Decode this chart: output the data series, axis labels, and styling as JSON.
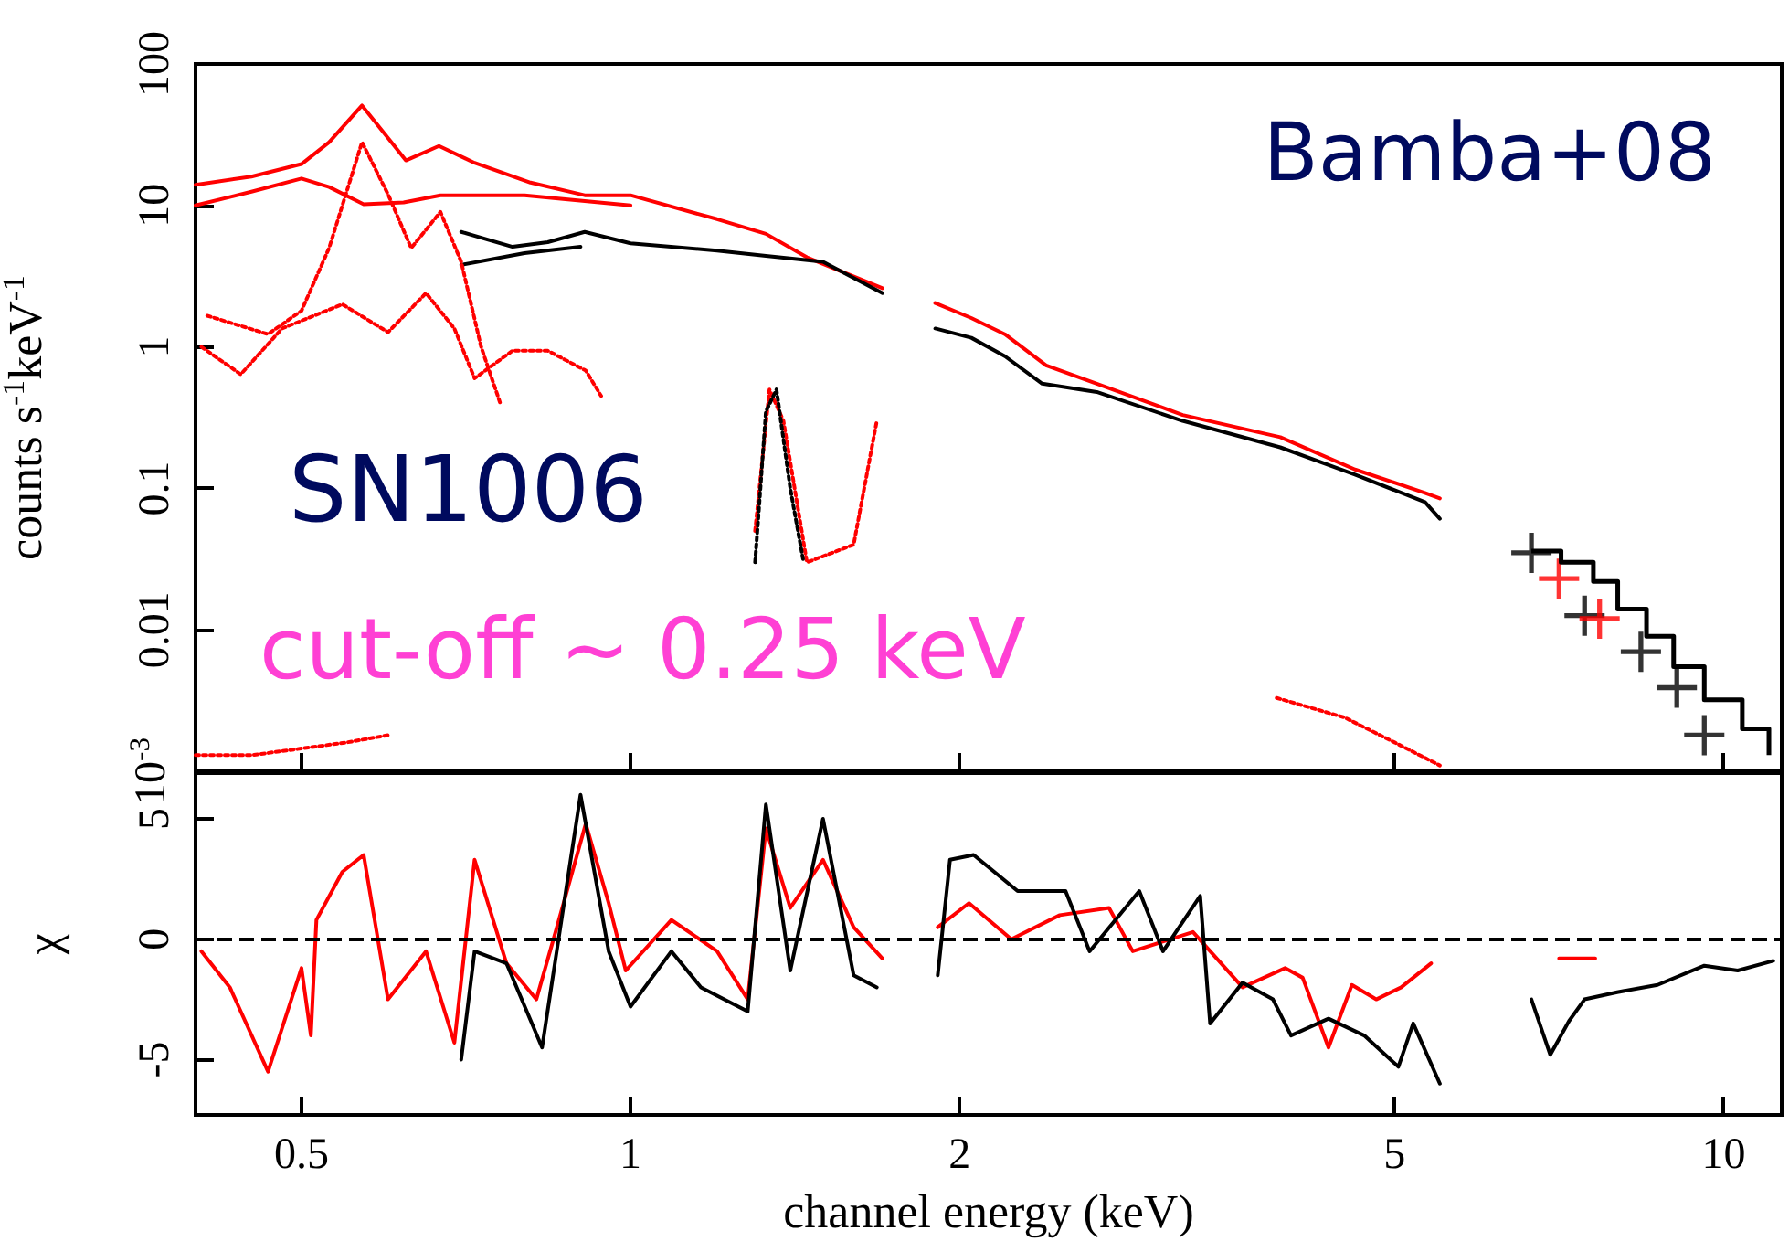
{
  "chart_data": [
    {
      "type": "line",
      "ylabel": "counts s$^{-1}$keV$^{-1}$",
      "annotations": [
        "Bamba+08",
        "SN1006",
        "cut-off ~ 0.25 keV"
      ],
      "log": "xy",
      "tick_labels": "y",
      "xlim": [
        0.4,
        11.3
      ],
      "xticks": [
        {
          "value": 0.5,
          "label": null
        },
        {
          "value": 1,
          "label": null
        },
        {
          "value": 2,
          "label": null
        },
        {
          "value": 5,
          "label": null
        },
        {
          "value": 10,
          "label": null
        }
      ],
      "ylim": [
        0.001,
        100
      ],
      "yticks": [
        {
          "value": 0.001,
          "label": "10$^{-3}$"
        },
        0.01,
        0.1,
        1,
        10,
        100
      ],
      "marker": "none",
      "series": [
        {
          "color": "#ff0000",
          "x": [
            0.4,
            0.45,
            0.5,
            0.53,
            0.568,
            0.6,
            0.623,
            0.668,
            0.72,
            0.81,
            0.908,
            1.0,
            1.2,
            1.33,
            1.45,
            1.7,
            1.8,
            1.9,
            2.05,
            2.2,
            2.4,
            2.67,
            3.2,
            3.93,
            4.6,
            5.33,
            5.5
          ],
          "values": [
            14,
            16,
            19.6,
            28,
            50.9,
            30,
            20.8,
            26.3,
            20,
            14.5,
            11.8,
            11.8,
            8,
            6.3,
            4.3,
            2.6,
            null,
            2.04,
            1.6,
            1.23,
            0.74,
            0.55,
            0.33,
            0.23,
            0.136,
            0.093,
            0.085
          ]
        },
        {
          "color": "#000000",
          "x": [
            0.7,
            0.78,
            0.84,
            0.908,
            1.0,
            1.2,
            1.33,
            1.5,
            1.7,
            1.8,
            1.9,
            2.05,
            2.2,
            2.38,
            2.67,
            3.2,
            3.93,
            4.6,
            5.33,
            5.5
          ],
          "values": [
            6.5,
            5.1,
            5.5,
            6.5,
            5.4,
            4.8,
            4.4,
            4.0,
            2.4,
            null,
            1.35,
            1.16,
            0.86,
            0.55,
            0.48,
            0.3,
            0.195,
            0.125,
            0.08,
            0.061
          ]
        },
        {
          "color": "#ff0000",
          "x": [
            0.4,
            0.45,
            0.5,
            0.53,
            0.57,
            0.62,
            0.67,
            0.8,
            1.0
          ],
          "values": [
            10,
            12.5,
            15.5,
            13.5,
            10.2,
            10.5,
            11.8,
            11.8,
            10
          ]
        },
        {
          "color": "#000000",
          "x": [
            0.7,
            0.8,
            0.9
          ],
          "values": [
            3.8,
            4.6,
            5.1
          ]
        },
        {
          "color": "#ff0000",
          "line_style": "dotted",
          "x": [
            0.41,
            0.466,
            0.5,
            0.53,
            0.568,
            0.6,
            0.63,
            0.67,
            0.7,
            0.73,
            0.76
          ],
          "values": [
            1.66,
            1.23,
            1.8,
            5,
            28,
            12,
            5,
            9,
            4,
            1,
            0.4
          ]
        },
        {
          "color": "#ff0000",
          "line_style": "dotted",
          "x": [
            0.405,
            0.44,
            0.48,
            0.545,
            0.6,
            0.65,
            0.69,
            0.72,
            0.78,
            0.84,
            0.91,
            0.94
          ],
          "values": [
            1,
            0.64,
            1.35,
            2,
            1.27,
            2.4,
            1.35,
            0.6,
            0.94,
            0.94,
            0.68,
            0.45
          ]
        },
        {
          "color": "#ff0000",
          "line_style": "dotted",
          "x": [
            1.3,
            1.34,
            1.38,
            1.45,
            1.6,
            1.68
          ],
          "values": [
            0.05,
            0.5,
            0.3,
            0.03,
            0.04,
            0.3
          ]
        },
        {
          "color": "#000000",
          "line_style": "dotted",
          "x": [
            1.3,
            1.33,
            1.36,
            1.4,
            1.44
          ],
          "values": [
            0.03,
            0.35,
            0.5,
            0.1,
            0.03
          ]
        },
        {
          "color": "#ff0000",
          "line_style": "dotted",
          "x": [
            0.4,
            0.45,
            0.55,
            0.6
          ],
          "values": [
            0.0013,
            0.0013,
            0.0016,
            0.0018
          ]
        },
        {
          "color": "#ff0000",
          "line_style": "dotted",
          "x": [
            3.9,
            4.5,
            5.0,
            5.5
          ],
          "values": [
            0.0033,
            0.0024,
            0.0016,
            0.0011
          ]
        },
        {
          "type": "step",
          "color": "#000000",
          "x": [
            6.67,
            7.1,
            7.6,
            8.0,
            8.5,
            9.0,
            9.6,
            10.4,
            11.0
          ],
          "values": [
            0.036,
            0.03,
            0.022,
            0.014,
            0.009,
            0.0055,
            0.0032,
            0.002,
            0.0013
          ]
        },
        {
          "type": "scatter",
          "marker": "cross",
          "color": "#000000",
          "x": [
            6.67,
            7.46,
            8.4,
            9.06,
            9.6
          ],
          "values": [
            0.035,
            0.0126,
            0.007,
            0.0039,
            0.0018
          ]
        },
        {
          "type": "scatter",
          "marker": "cross",
          "color": "#ff0000",
          "x": [
            7.07,
            7.7
          ],
          "values": [
            0.023,
            0.012
          ]
        }
      ]
    },
    {
      "type": "line",
      "xlabel": "channel energy (keV)",
      "ylabel": "χ",
      "log": "x",
      "xlim": [
        0.4,
        11.3
      ],
      "xticks": [
        0.5,
        1,
        2,
        5,
        10
      ],
      "ylim": [
        -7.3,
        6.9
      ],
      "yticks": [
        -5,
        0,
        5
      ],
      "marker": "none",
      "ref_lines": [
        {
          "axis": "y",
          "value": 0,
          "line_style": "dashed",
          "color": "#000000"
        }
      ],
      "series": [
        {
          "color": "#ff0000",
          "x": [
            0.405,
            0.43,
            0.466,
            0.5,
            0.51,
            0.516,
            0.545,
            0.57,
            0.6,
            0.65,
            0.69,
            0.72,
            0.77,
            0.82,
            0.86,
            0.91,
            0.955,
            0.99,
            1.09,
            1.2,
            1.28,
            1.33,
            1.4,
            1.5,
            1.6,
            1.7,
            1.8,
            1.91,
            2.04,
            2.23,
            2.47,
            2.74,
            2.88,
            3.27,
            3.63,
            3.97,
            4.12,
            4.35,
            4.57,
            4.81,
            5.07,
            5.4,
            6.2,
            7.07,
            7.63
          ],
          "values": [
            -0.5,
            -2,
            -5.5,
            -1.2,
            -4,
            0.8,
            2.8,
            3.5,
            -2.5,
            -0.5,
            -4.3,
            3.3,
            -1,
            -2.5,
            0.8,
            4.8,
            1.5,
            -1.3,
            0.8,
            -0.5,
            -2.5,
            4.6,
            1.3,
            3.3,
            0.5,
            -0.8,
            null,
            0.5,
            1.5,
            0,
            1,
            1.3,
            -0.5,
            0.3,
            -2,
            -1.2,
            -1.6,
            -4.5,
            -1.9,
            -2.5,
            -2,
            -1,
            null,
            -0.8,
            -0.8
          ]
        },
        {
          "color": "#000000",
          "x": [
            0.7,
            0.72,
            0.77,
            0.83,
            0.9,
            0.955,
            1.0,
            1.09,
            1.16,
            1.28,
            1.33,
            1.4,
            1.5,
            1.6,
            1.68,
            1.8,
            1.91,
            1.96,
            2.06,
            2.26,
            2.5,
            2.63,
            2.92,
            3.07,
            3.32,
            3.39,
            3.63,
            3.87,
            4.02,
            4.35,
            4.69,
            5.04,
            5.2,
            5.5,
            6.1,
            6.67,
            6.94,
            7.22,
            7.46,
            7.99,
            8.7,
            9.6,
            10.3,
            11.1
          ],
          "values": [
            -5,
            -0.5,
            -1,
            -4.5,
            6,
            -0.5,
            -2.8,
            -0.5,
            -2,
            -3,
            5.6,
            -1.3,
            5,
            -1.5,
            -2,
            null,
            -1.5,
            3.3,
            3.5,
            2,
            2,
            -0.5,
            2,
            -0.5,
            1.8,
            -3.5,
            -1.8,
            -2.5,
            -4,
            -3.3,
            -4,
            -5.3,
            -3.5,
            -6,
            null,
            -2.5,
            -4.8,
            -3.4,
            -2.5,
            -2.2,
            -1.9,
            -1.1,
            -1.3,
            -0.9
          ]
        }
      ]
    }
  ]
}
